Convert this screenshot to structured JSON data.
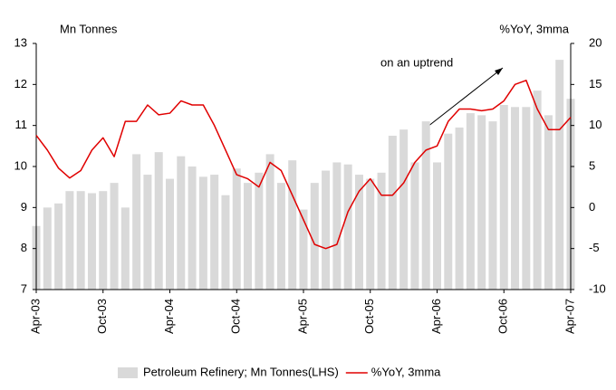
{
  "chart_data": {
    "type": "bar-line",
    "y_label": "Mn Tonnes",
    "y2_label": "%YoY, 3mma",
    "annotation": "on an uptrend",
    "categories": [
      "Apr-03",
      null,
      null,
      null,
      null,
      null,
      "Oct-03",
      null,
      null,
      null,
      null,
      null,
      "Apr-04",
      null,
      null,
      null,
      null,
      null,
      "Oct-04",
      null,
      null,
      null,
      null,
      null,
      "Apr-05",
      null,
      null,
      null,
      null,
      null,
      "Oct-05",
      null,
      null,
      null,
      null,
      null,
      "Apr-06",
      null,
      null,
      null,
      null,
      null,
      "Oct-06",
      null,
      null,
      null,
      null,
      null,
      "Apr-07"
    ],
    "ylim": [
      7,
      13
    ],
    "yticks": [
      7,
      8,
      9,
      10,
      11,
      12,
      13
    ],
    "y2lim": [
      -10,
      20
    ],
    "y2ticks": [
      -10,
      -5,
      0,
      5,
      10,
      15,
      20
    ],
    "series": [
      {
        "name": "Petroleum Refinery; Mn Tonnes(LHS)",
        "color": "#d9d9d9",
        "values": [
          8.55,
          9.0,
          9.1,
          9.4,
          9.4,
          9.35,
          9.4,
          9.6,
          9.0,
          10.3,
          9.8,
          10.35,
          9.7,
          10.25,
          10.0,
          9.75,
          9.8,
          9.3,
          9.95,
          9.6,
          9.85,
          10.3,
          9.6,
          10.15,
          8.95,
          9.6,
          9.9,
          10.1,
          10.05,
          9.8,
          9.7,
          9.85,
          10.75,
          10.9,
          10.1,
          11.1,
          10.1,
          10.8,
          10.95,
          11.3,
          11.25,
          11.1,
          11.5,
          11.45,
          11.45,
          11.85,
          11.25,
          12.6,
          11.65
        ]
      },
      {
        "name": "%YoY, 3mma",
        "color": "#e00000",
        "axis": "y2",
        "values": [
          8.8,
          7.0,
          4.8,
          3.6,
          4.5,
          7.0,
          8.5,
          6.2,
          10.5,
          10.5,
          12.5,
          11.3,
          11.5,
          13.0,
          12.5,
          12.5,
          10.0,
          7.0,
          4.0,
          3.5,
          2.5,
          5.5,
          4.5,
          1.5,
          -1.5,
          -4.5,
          -5.0,
          -4.5,
          -0.5,
          2.0,
          3.5,
          1.5,
          1.5,
          3.0,
          5.5,
          7.0,
          7.5,
          10.5,
          12.0,
          12.0,
          11.8,
          12.0,
          13.0,
          15.0,
          15.5,
          12.0,
          9.5,
          9.5,
          11.0
        ]
      }
    ]
  }
}
